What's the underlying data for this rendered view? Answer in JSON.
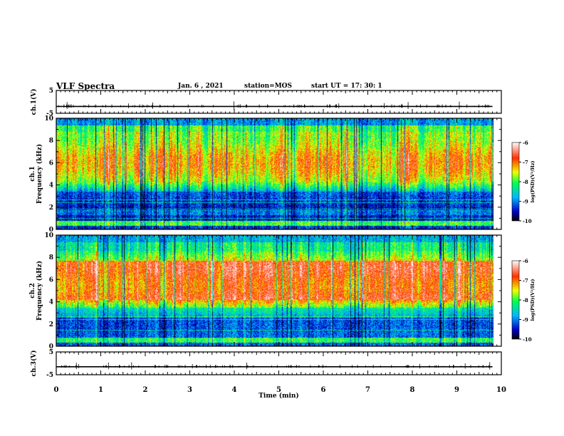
{
  "header": {
    "title": "VLF Spectra",
    "date": "Jan. 6 , 2021",
    "station": "station=MOS",
    "start_ut": "start UT =   17: 30: 1"
  },
  "chart_data": [
    {
      "type": "line",
      "panel": "ch1-waveform",
      "ylabel": "ch.1(V)",
      "ylim": [
        -5,
        5
      ],
      "yticks": [
        5,
        -5
      ],
      "xlim": [
        0,
        10
      ],
      "series": [
        {
          "x": [
            0,
            9.8
          ],
          "values": [
            -2,
            -2
          ]
        }
      ]
    },
    {
      "type": "heatmap",
      "panel": "ch1-spectrogram",
      "ylabel": "ch.1\nFrequency (kHz)",
      "ylim": [
        0,
        10
      ],
      "yticks": [
        "0",
        "2",
        "4",
        "6",
        "8",
        "10"
      ],
      "xlim": [
        0,
        9.8
      ],
      "colorbar": {
        "label": "log(PSD)(V²/Hz)",
        "range": [
          -10,
          -6
        ],
        "ticks": [
          "-6",
          "-7",
          "-8",
          "-9",
          "-10"
        ]
      }
    },
    {
      "type": "heatmap",
      "panel": "ch2-spectrogram",
      "ylabel": "ch.2\nFrequency (kHz)",
      "ylim": [
        0,
        10
      ],
      "yticks": [
        "0",
        "2",
        "4",
        "6",
        "8",
        "10"
      ],
      "xlim": [
        0,
        9.8
      ],
      "colorbar": {
        "label": "log(PSD)(V²/Hz)",
        "range": [
          -10,
          -6
        ],
        "ticks": [
          "-6",
          "-7",
          "-8",
          "-9",
          "-10"
        ]
      }
    },
    {
      "type": "line",
      "panel": "ch3-waveform",
      "ylabel": "ch.3(V)",
      "ylim": [
        -5,
        5
      ],
      "yticks": [
        5,
        -5
      ],
      "xlim": [
        0,
        10
      ],
      "series": [
        {
          "x": [
            0,
            9.8
          ],
          "values": [
            -1.5,
            -1.5
          ]
        }
      ]
    }
  ],
  "xaxis": {
    "label": "Time (min)",
    "ticks": [
      "0",
      "1",
      "2",
      "3",
      "4",
      "5",
      "6",
      "7",
      "8",
      "9",
      "10"
    ]
  }
}
